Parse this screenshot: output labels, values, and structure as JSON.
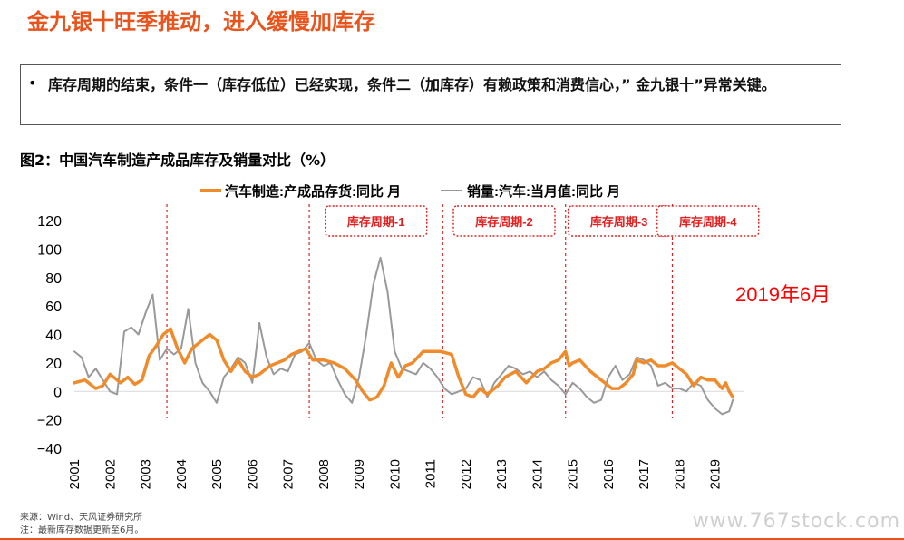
{
  "header": {
    "title": "金九银十旺季推动，进入缓慢加库存"
  },
  "callout": {
    "bullet": "•",
    "text": "库存周期的结束，条件一（库存低位）已经实现，条件二（加库存）有赖政策和消费信心，” 金九银十”异常关键。"
  },
  "figure": {
    "title": "图2：中国汽车制造产成品库存及销量对比（%）"
  },
  "annotation": {
    "text": "2019年6月",
    "color": "#ff0000"
  },
  "footer": {
    "source": "来源：Wind、天风证券研究所",
    "note": "注：最新库存数据更新至6月。"
  },
  "watermark": "www.767stock.com",
  "colors": {
    "inventory": "#f08b2c",
    "sales": "#999999",
    "cycle": "#e02020"
  },
  "chart_data": {
    "type": "line",
    "ylim": [
      -40,
      120
    ],
    "yticks": [
      -40,
      -20,
      0,
      20,
      40,
      60,
      80,
      100,
      120
    ],
    "xlim": [
      2001,
      2019.8
    ],
    "xticks": [
      "2001",
      "2002",
      "2003",
      "2004",
      "2005",
      "2006",
      "2007",
      "2008",
      "2009",
      "2010",
      "2011",
      "2012",
      "2013",
      "2014",
      "2015",
      "2016",
      "2017",
      "2018",
      "2019"
    ],
    "legend_position": "top",
    "cycle_lines": [
      2003.6,
      2007.6,
      2011.35,
      2014.8,
      2017.8
    ],
    "cycles": [
      {
        "label": "库存周期-1",
        "from": 2007.6,
        "to": 2011.35
      },
      {
        "label": "库存周期-2",
        "from": 2011.35,
        "to": 2014.8
      },
      {
        "label": "库存周期-3",
        "from": 2014.8,
        "to": 2017.8
      },
      {
        "label": "库存周期-4",
        "from": 2017.8,
        "to": 2019.8
      }
    ],
    "series": [
      {
        "name": "汽车制造:产成品存货:同比 月",
        "x": [
          2001.0,
          2001.3,
          2001.6,
          2001.8,
          2002.0,
          2002.3,
          2002.5,
          2002.7,
          2002.9,
          2003.1,
          2003.3,
          2003.5,
          2003.7,
          2003.9,
          2004.1,
          2004.3,
          2004.6,
          2004.8,
          2005.0,
          2005.2,
          2005.4,
          2005.6,
          2005.8,
          2006.0,
          2006.2,
          2006.5,
          2006.7,
          2006.9,
          2007.1,
          2007.3,
          2007.5,
          2007.7,
          2008.0,
          2008.3,
          2008.6,
          2008.9,
          2009.1,
          2009.3,
          2009.5,
          2009.7,
          2009.9,
          2010.1,
          2010.3,
          2010.5,
          2010.8,
          2011.0,
          2011.3,
          2011.6,
          2011.8,
          2012.0,
          2012.2,
          2012.4,
          2012.6,
          2012.9,
          2013.1,
          2013.4,
          2013.7,
          2014.0,
          2014.2,
          2014.4,
          2014.6,
          2014.8,
          2014.9,
          2015.0,
          2015.2,
          2015.5,
          2015.7,
          2015.9,
          2016.1,
          2016.3,
          2016.5,
          2016.7,
          2016.8,
          2017.0,
          2017.2,
          2017.4,
          2017.6,
          2017.8,
          2018.0,
          2018.2,
          2018.4,
          2018.6,
          2018.8,
          2019.0,
          2019.2,
          2019.3,
          2019.4,
          2019.5
        ],
        "y": [
          6,
          8,
          2,
          4,
          12,
          6,
          10,
          5,
          8,
          25,
          32,
          40,
          44,
          30,
          20,
          30,
          36,
          40,
          36,
          22,
          14,
          22,
          14,
          10,
          12,
          18,
          20,
          22,
          26,
          28,
          30,
          22,
          22,
          20,
          16,
          8,
          0,
          -6,
          -4,
          4,
          20,
          10,
          18,
          20,
          28,
          28,
          28,
          26,
          10,
          -2,
          -4,
          2,
          -2,
          4,
          10,
          14,
          6,
          14,
          16,
          20,
          22,
          28,
          18,
          20,
          22,
          14,
          10,
          6,
          2,
          2,
          6,
          12,
          22,
          20,
          22,
          18,
          18,
          20,
          16,
          12,
          4,
          10,
          8,
          8,
          2,
          6,
          0,
          -4
        ]
      },
      {
        "name": "销量:汽车:当月值:同比 月",
        "x": [
          2001.0,
          2001.2,
          2001.4,
          2001.6,
          2001.8,
          2002.0,
          2002.2,
          2002.4,
          2002.6,
          2002.8,
          2003.0,
          2003.2,
          2003.4,
          2003.6,
          2003.8,
          2004.0,
          2004.2,
          2004.4,
          2004.6,
          2004.8,
          2005.0,
          2005.2,
          2005.4,
          2005.6,
          2005.8,
          2006.0,
          2006.2,
          2006.4,
          2006.6,
          2006.8,
          2007.0,
          2007.2,
          2007.4,
          2007.6,
          2007.8,
          2008.0,
          2008.2,
          2008.4,
          2008.6,
          2008.8,
          2009.0,
          2009.2,
          2009.4,
          2009.6,
          2009.8,
          2010.0,
          2010.2,
          2010.4,
          2010.6,
          2010.8,
          2011.0,
          2011.2,
          2011.4,
          2011.6,
          2011.8,
          2012.0,
          2012.2,
          2012.4,
          2012.6,
          2012.8,
          2013.0,
          2013.2,
          2013.4,
          2013.6,
          2013.8,
          2014.0,
          2014.2,
          2014.4,
          2014.6,
          2014.8,
          2015.0,
          2015.2,
          2015.4,
          2015.6,
          2015.8,
          2016.0,
          2016.2,
          2016.4,
          2016.6,
          2016.8,
          2017.0,
          2017.2,
          2017.4,
          2017.6,
          2017.8,
          2018.0,
          2018.2,
          2018.4,
          2018.6,
          2018.8,
          2019.0,
          2019.2,
          2019.4,
          2019.5
        ],
        "y": [
          28,
          24,
          10,
          16,
          8,
          0,
          -2,
          42,
          45,
          40,
          55,
          68,
          22,
          30,
          26,
          30,
          58,
          20,
          6,
          0,
          -8,
          10,
          16,
          24,
          20,
          6,
          48,
          24,
          12,
          16,
          14,
          26,
          28,
          34,
          22,
          18,
          20,
          8,
          -2,
          -8,
          10,
          40,
          75,
          94,
          70,
          28,
          16,
          14,
          12,
          20,
          16,
          10,
          2,
          -2,
          0,
          2,
          10,
          8,
          -4,
          6,
          12,
          18,
          16,
          12,
          14,
          10,
          14,
          8,
          4,
          -2,
          6,
          2,
          -4,
          -8,
          -6,
          10,
          18,
          8,
          12,
          24,
          22,
          18,
          4,
          6,
          2,
          2,
          0,
          6,
          4,
          -6,
          -12,
          -16,
          -14,
          -6
        ]
      }
    ]
  }
}
